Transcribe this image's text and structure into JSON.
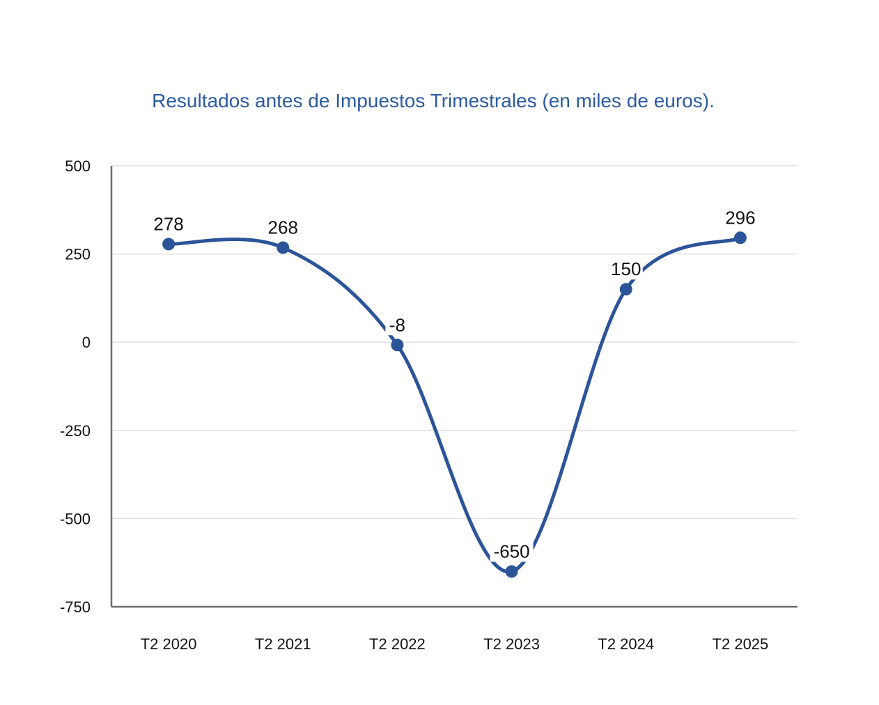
{
  "chart_data": {
    "type": "line",
    "title": "Resultados antes de Impuestos Trimestrales (en miles de euros).",
    "xlabel": "",
    "ylabel": "",
    "categories": [
      "T2 2020",
      "T2 2021",
      "T2 2022",
      "T2 2023",
      "T2 2024",
      "T2 2025"
    ],
    "series": [
      {
        "values": [
          278,
          268,
          -8,
          -650,
          150,
          296
        ],
        "data_labels": [
          "278",
          "268",
          "-8",
          "-650",
          "150",
          "296"
        ]
      }
    ],
    "ylim": [
      -750,
      500
    ],
    "yticks": [
      500,
      250,
      0,
      -250,
      -500,
      -750
    ],
    "ytick_labels": [
      "500",
      "250",
      "0",
      "-250",
      "-500",
      "-750"
    ],
    "grid": true,
    "smooth": true,
    "colors": {
      "line": "#2b5499",
      "title": "#2b5aa0",
      "grid": "#e0e0e0",
      "axis": "#6b6b6b"
    }
  }
}
